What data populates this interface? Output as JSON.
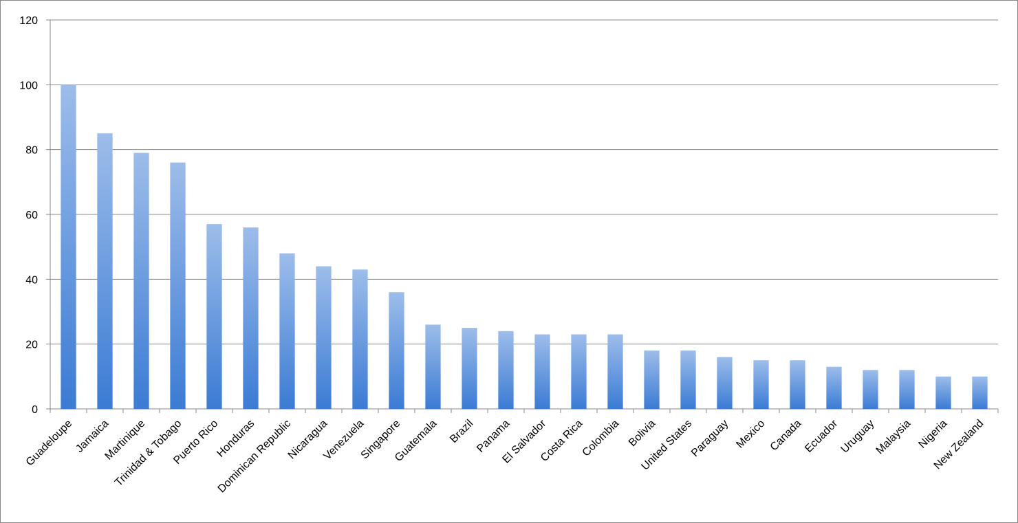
{
  "chart_data": {
    "type": "bar",
    "categories": [
      "Guadeloupe",
      "Jamaica",
      "Martinique",
      "Trinidad & Tobago",
      "Puerto Rico",
      "Honduras",
      "Dominican Republic",
      "Nicaragua",
      "Venezuela",
      "Singapore",
      "Guatemala",
      "Brazil",
      "Panama",
      "El Salvador",
      "Costa Rica",
      "Colombia",
      "Bolivia",
      "United States",
      "Paraguay",
      "Mexico",
      "Canada",
      "Ecuador",
      "Uruguay",
      "Malaysia",
      "Nigeria",
      "New Zealand"
    ],
    "values": [
      100,
      85,
      79,
      76,
      57,
      56,
      48,
      44,
      43,
      36,
      26,
      25,
      24,
      23,
      23,
      23,
      18,
      18,
      16,
      15,
      15,
      13,
      12,
      12,
      10,
      10
    ],
    "color": "#3b7bd4",
    "ylim": [
      0,
      120
    ],
    "yticks": [
      0,
      20,
      40,
      60,
      80,
      100,
      120
    ],
    "grid": true
  }
}
